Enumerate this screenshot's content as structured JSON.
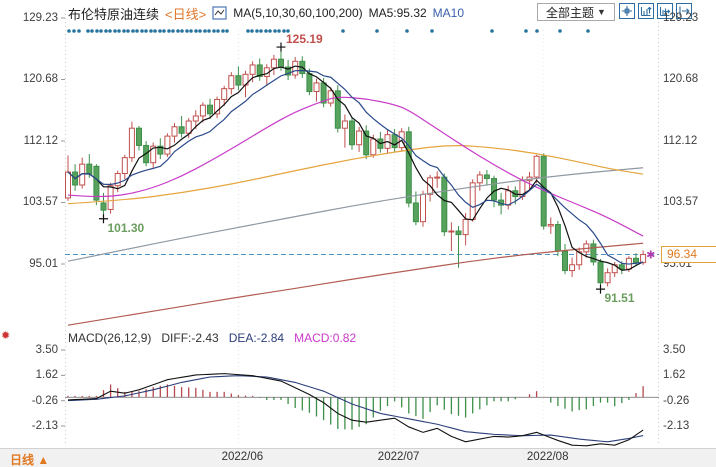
{
  "header": {
    "title": "布伦特原油连续",
    "period_tag": "<日线>",
    "ma_label": "MA(5,10,30,60,100,200)",
    "ma5_label": "MA5:95.32",
    "ma10_label": "MA10",
    "theme_dropdown": "全部主题",
    "dropdown_arrow": "▼"
  },
  "macd_header": {
    "formula": "MACD(26,12,9)",
    "diff": "DIFF:-2.43",
    "dea": "DEA:-2.84",
    "macd": "MACD:0.82"
  },
  "bottom_bar": {
    "period": "日线",
    "arrow": "▲"
  },
  "last_price_box": "96.34",
  "price_axis_ticks": [
    "129.23",
    "120.68",
    "112.12",
    "103.57",
    "95.01"
  ],
  "macd_axis_ticks": [
    "3.50",
    "1.62",
    "-0.26",
    "-2.13"
  ],
  "colors": {
    "up": "#c0504d",
    "down_fill": "#57a25c",
    "down_stroke": "#3d8f49",
    "accent_orange": "#e07820",
    "dashed_line": "#4e94c8",
    "event_dot": "#27759e",
    "toolbar_icon": "#2e6da4"
  },
  "chart_data": {
    "type": "candlestick+macd",
    "title": "布伦特原油连续 日线",
    "price_ticks": [
      129.23,
      120.68,
      112.12,
      103.57,
      95.01
    ],
    "macd_ticks": [
      3.5,
      1.62,
      -0.26,
      -2.13
    ],
    "x_labels": [
      {
        "text": "2022/06",
        "i": 24
      },
      {
        "text": "2022/07",
        "i": 46
      },
      {
        "text": "2022/08",
        "i": 67
      }
    ],
    "dashed_line_price": 96.34,
    "candles": [
      [
        104.2,
        110.1,
        103.8,
        107.8
      ],
      [
        107.8,
        108.9,
        105.2,
        106.0
      ],
      [
        106.0,
        109.8,
        105.5,
        108.9
      ],
      [
        108.9,
        110.3,
        107.0,
        107.5
      ],
      [
        108.6,
        108.9,
        103.2,
        103.9
      ],
      [
        103.5,
        104.9,
        101.3,
        102.5
      ],
      [
        102.6,
        106.3,
        102.0,
        105.9
      ],
      [
        105.9,
        108.0,
        105.0,
        107.6
      ],
      [
        107.6,
        110.2,
        106.8,
        109.8
      ],
      [
        109.8,
        114.8,
        109.2,
        113.9
      ],
      [
        113.9,
        114.2,
        110.8,
        111.5
      ],
      [
        111.5,
        112.1,
        108.6,
        109.1
      ],
      [
        109.1,
        111.9,
        108.4,
        111.4
      ],
      [
        111.4,
        112.5,
        109.6,
        110.3
      ],
      [
        110.3,
        113.2,
        109.9,
        112.8
      ],
      [
        112.8,
        114.6,
        111.9,
        114.1
      ],
      [
        114.1,
        115.6,
        112.6,
        113.2
      ],
      [
        113.2,
        115.3,
        112.5,
        114.9
      ],
      [
        114.9,
        116.4,
        113.8,
        115.6
      ],
      [
        115.6,
        117.5,
        114.7,
        117.1
      ],
      [
        117.1,
        118.0,
        115.2,
        115.9
      ],
      [
        115.9,
        118.3,
        115.3,
        117.9
      ],
      [
        117.9,
        119.8,
        117.0,
        119.4
      ],
      [
        119.4,
        121.7,
        118.6,
        121.2
      ],
      [
        121.2,
        122.5,
        119.2,
        119.9
      ],
      [
        119.9,
        121.9,
        118.2,
        121.4
      ],
      [
        121.4,
        123.2,
        120.3,
        122.7
      ],
      [
        122.7,
        123.6,
        120.5,
        121.1
      ],
      [
        121.1,
        122.8,
        119.8,
        122.3
      ],
      [
        122.3,
        124.1,
        121.3,
        123.5
      ],
      [
        123.5,
        125.19,
        121.9,
        122.4
      ],
      [
        122.4,
        123.4,
        120.6,
        121.3
      ],
      [
        121.3,
        123.8,
        120.8,
        123.2
      ],
      [
        123.2,
        123.9,
        120.9,
        121.5
      ],
      [
        121.5,
        122.2,
        118.5,
        119.0
      ],
      [
        119.0,
        120.8,
        117.6,
        120.2
      ],
      [
        120.2,
        120.9,
        116.8,
        117.4
      ],
      [
        117.4,
        119.6,
        116.9,
        119.1
      ],
      [
        119.1,
        119.9,
        113.3,
        113.9
      ],
      [
        113.9,
        115.8,
        111.2,
        114.9
      ],
      [
        114.9,
        115.3,
        110.9,
        111.6
      ],
      [
        111.6,
        114.1,
        110.6,
        113.5
      ],
      [
        113.5,
        114.3,
        109.6,
        110.2
      ],
      [
        110.2,
        113.0,
        109.8,
        112.4
      ],
      [
        112.4,
        113.4,
        110.5,
        111.1
      ],
      [
        111.1,
        113.6,
        110.4,
        113.0
      ],
      [
        113.0,
        113.8,
        110.6,
        111.2
      ],
      [
        111.2,
        113.9,
        110.8,
        113.4
      ],
      [
        113.4,
        114.1,
        102.9,
        103.5
      ],
      [
        103.5,
        105.1,
        100.4,
        100.9
      ],
      [
        100.9,
        105.2,
        100.2,
        104.7
      ],
      [
        104.7,
        107.4,
        103.7,
        107.0
      ],
      [
        107.0,
        107.9,
        105.6,
        107.1
      ],
      [
        107.1,
        107.6,
        98.9,
        99.5
      ],
      [
        99.5,
        100.8,
        96.8,
        99.6
      ],
      [
        99.6,
        100.3,
        94.5,
        99.1
      ],
      [
        99.1,
        102.1,
        97.6,
        101.2
      ],
      [
        101.2,
        106.8,
        100.9,
        106.3
      ],
      [
        106.3,
        107.9,
        105.2,
        107.4
      ],
      [
        107.4,
        108.1,
        105.9,
        106.9
      ],
      [
        106.9,
        107.3,
        102.9,
        103.9
      ],
      [
        103.9,
        104.9,
        101.9,
        103.2
      ],
      [
        103.2,
        105.9,
        102.6,
        105.2
      ],
      [
        105.2,
        105.8,
        103.3,
        104.4
      ],
      [
        104.4,
        107.2,
        103.9,
        106.6
      ],
      [
        106.6,
        107.8,
        105.4,
        107.1
      ],
      [
        107.1,
        110.2,
        106.3,
        110.0
      ],
      [
        110.0,
        110.4,
        99.8,
        100.3
      ],
      [
        100.3,
        101.5,
        99.2,
        100.5
      ],
      [
        100.5,
        101.0,
        96.1,
        96.8
      ],
      [
        96.8,
        97.8,
        93.6,
        94.1
      ],
      [
        94.1,
        95.9,
        93.2,
        94.9
      ],
      [
        94.9,
        97.3,
        94.2,
        96.7
      ],
      [
        96.7,
        98.3,
        95.9,
        97.8
      ],
      [
        97.8,
        98.4,
        94.8,
        95.3
      ],
      [
        95.3,
        95.7,
        91.51,
        92.4
      ],
      [
        92.4,
        94.4,
        91.9,
        93.8
      ],
      [
        93.8,
        95.3,
        93.2,
        94.9
      ],
      [
        94.9,
        95.4,
        93.6,
        94.3
      ],
      [
        94.3,
        96.1,
        93.9,
        95.8
      ],
      [
        95.8,
        96.5,
        94.7,
        95.2
      ],
      [
        95.2,
        96.9,
        94.9,
        96.34
      ]
    ],
    "ma_computed": [
      {
        "name": "MA5",
        "period": 5,
        "color": "#111111"
      },
      {
        "name": "MA10",
        "period": 10,
        "color": "#2b4a8b"
      }
    ],
    "ma_overlays": [
      {
        "name": "MA200",
        "color": "#b25c52",
        "points": [
          [
            0,
            86.5
          ],
          [
            8,
            87.8
          ],
          [
            16,
            89.1
          ],
          [
            24,
            90.4
          ],
          [
            32,
            91.6
          ],
          [
            40,
            92.9
          ],
          [
            48,
            94.1
          ],
          [
            56,
            95.3
          ],
          [
            64,
            96.3
          ],
          [
            72,
            97.1
          ],
          [
            81,
            97.9
          ]
        ]
      },
      {
        "name": "MA100",
        "color": "#8f99a3",
        "points": [
          [
            0,
            95.4
          ],
          [
            8,
            97.0
          ],
          [
            16,
            98.6
          ],
          [
            24,
            100.1
          ],
          [
            32,
            101.6
          ],
          [
            40,
            103.1
          ],
          [
            48,
            104.4
          ],
          [
            56,
            105.6
          ],
          [
            64,
            106.7
          ],
          [
            72,
            107.6
          ],
          [
            81,
            108.4
          ]
        ]
      },
      {
        "name": "MA60",
        "color": "#e5a43c",
        "points": [
          [
            0,
            103.4
          ],
          [
            8,
            103.9
          ],
          [
            16,
            104.9
          ],
          [
            24,
            106.3
          ],
          [
            32,
            108.0
          ],
          [
            40,
            109.6
          ],
          [
            48,
            110.9
          ],
          [
            54,
            111.6
          ],
          [
            60,
            111.2
          ],
          [
            66,
            110.4
          ],
          [
            72,
            109.2
          ],
          [
            76,
            108.3
          ],
          [
            81,
            107.5
          ]
        ]
      },
      {
        "name": "MA30",
        "color": "#c93ac9",
        "points": [
          [
            0,
            104.6
          ],
          [
            4,
            104.3
          ],
          [
            8,
            104.6
          ],
          [
            12,
            105.6
          ],
          [
            16,
            107.2
          ],
          [
            20,
            109.3
          ],
          [
            24,
            111.6
          ],
          [
            28,
            114.0
          ],
          [
            32,
            116.2
          ],
          [
            36,
            117.7
          ],
          [
            38,
            118.3
          ],
          [
            42,
            118.0
          ],
          [
            46,
            117.2
          ],
          [
            48,
            116.4
          ],
          [
            52,
            113.8
          ],
          [
            56,
            111.2
          ],
          [
            60,
            108.8
          ],
          [
            64,
            106.6
          ],
          [
            68,
            104.8
          ],
          [
            72,
            103.2
          ],
          [
            76,
            101.5
          ],
          [
            81,
            98.9
          ]
        ]
      }
    ],
    "macd": {
      "diff_color": "#111111",
      "dea_color": "#2c3e7a",
      "pos_color": "#b5494d",
      "neg_color": "#3d8f49",
      "diff_points": [
        [
          0,
          -0.2
        ],
        [
          4,
          -0.1
        ],
        [
          6,
          0.45
        ],
        [
          8,
          0.3
        ],
        [
          10,
          0.55
        ],
        [
          14,
          1.3
        ],
        [
          18,
          1.65
        ],
        [
          22,
          1.75
        ],
        [
          26,
          1.6
        ],
        [
          30,
          1.2
        ],
        [
          32,
          0.7
        ],
        [
          34,
          0.2
        ],
        [
          36,
          -0.4
        ],
        [
          38,
          -1.2
        ],
        [
          40,
          -1.7
        ],
        [
          42,
          -1.85
        ],
        [
          44,
          -1.7
        ],
        [
          46,
          -1.55
        ],
        [
          48,
          -2.2
        ],
        [
          50,
          -2.6
        ],
        [
          52,
          -2.3
        ],
        [
          54,
          -2.9
        ],
        [
          56,
          -3.3
        ],
        [
          58,
          -3.1
        ],
        [
          60,
          -2.9
        ],
        [
          62,
          -2.95
        ],
        [
          64,
          -2.85
        ],
        [
          66,
          -2.6
        ],
        [
          69,
          -3.2
        ],
        [
          71,
          -3.55
        ],
        [
          73,
          -3.6
        ],
        [
          75,
          -3.45
        ],
        [
          77,
          -3.55
        ],
        [
          79,
          -3.15
        ],
        [
          81,
          -2.43
        ]
      ],
      "dea_points": [
        [
          0,
          -0.25
        ],
        [
          4,
          -0.15
        ],
        [
          8,
          0.1
        ],
        [
          12,
          0.55
        ],
        [
          16,
          1.1
        ],
        [
          20,
          1.5
        ],
        [
          24,
          1.6
        ],
        [
          28,
          1.5
        ],
        [
          32,
          1.1
        ],
        [
          36,
          0.45
        ],
        [
          40,
          -0.5
        ],
        [
          44,
          -1.2
        ],
        [
          48,
          -1.6
        ],
        [
          52,
          -2.0
        ],
        [
          56,
          -2.55
        ],
        [
          60,
          -2.75
        ],
        [
          64,
          -2.85
        ],
        [
          68,
          -2.8
        ],
        [
          72,
          -3.1
        ],
        [
          76,
          -3.3
        ],
        [
          79,
          -3.05
        ],
        [
          81,
          -2.84
        ]
      ]
    },
    "annotations": [
      {
        "text": "125.19",
        "i": 30,
        "price": 125.19,
        "color": "#c0504d",
        "pos": "above"
      },
      {
        "text": "101.30",
        "i": 5,
        "price": 101.3,
        "color": "#6b9e5e",
        "pos": "below"
      },
      {
        "text": "91.51",
        "i": 75,
        "price": 91.51,
        "color": "#6b9e5e",
        "pos": "below"
      }
    ],
    "last_marker": {
      "i": 81,
      "price": 96.34,
      "color": "#b03ab0"
    },
    "event_dots_x": [
      69,
      74,
      79,
      88,
      92,
      97,
      101,
      106,
      110,
      115,
      119,
      124,
      128,
      133,
      137,
      142,
      146,
      151,
      155,
      160,
      164,
      169,
      173,
      178,
      182,
      187,
      191,
      196,
      200,
      205,
      209,
      214,
      218,
      223,
      227,
      248,
      252,
      257,
      261,
      266,
      270,
      275,
      279,
      284,
      288,
      343,
      377,
      407,
      432,
      492,
      526,
      537,
      560,
      588
    ]
  }
}
